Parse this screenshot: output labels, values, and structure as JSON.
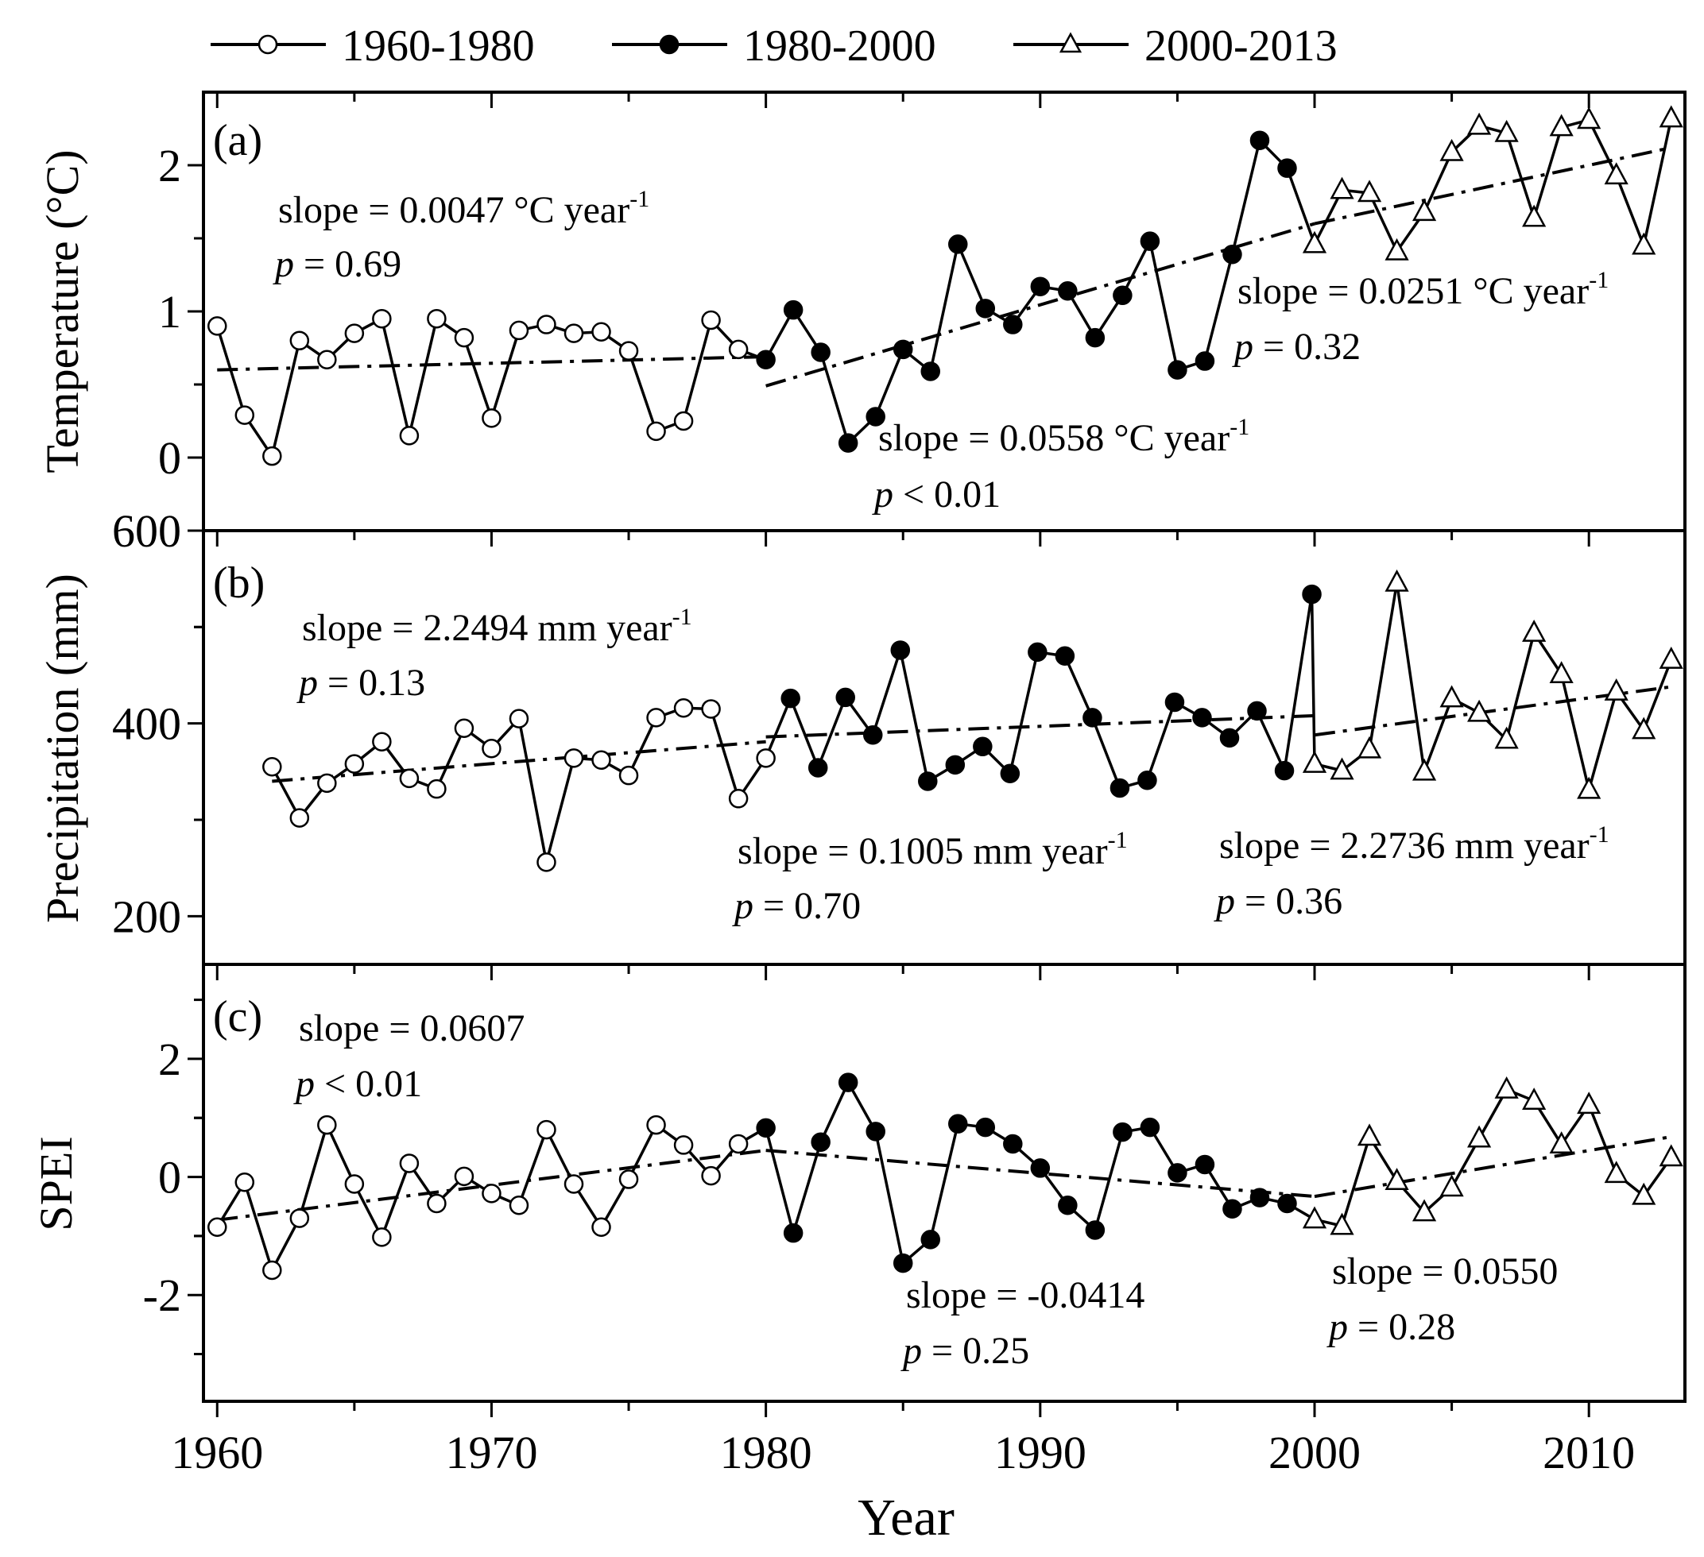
{
  "chart_data": {
    "type": "line",
    "x_label": "Year",
    "x_range": [
      1959.5,
      2013.5
    ],
    "x_ticks": [
      1960,
      1970,
      1980,
      1990,
      2000,
      2010
    ],
    "legend": [
      {
        "name": "1960-1980",
        "marker": "open-circle"
      },
      {
        "name": "1980-2000",
        "marker": "filled-circle"
      },
      {
        "name": "2000-2013",
        "marker": "open-triangle"
      }
    ],
    "panels": [
      {
        "id": "a",
        "label": "(a)",
        "ylabel": "Temperature (°C)",
        "ylim": [
          -0.5,
          2.5
        ],
        "yticks": [
          0,
          1,
          2
        ],
        "series": [
          {
            "name": "1960-1980",
            "x": [
              1960,
              1961,
              1962,
              1963,
              1964,
              1965,
              1966,
              1967,
              1968,
              1969,
              1970,
              1971,
              1972,
              1973,
              1974,
              1975,
              1976,
              1977,
              1978,
              1979
            ],
            "values": [
              0.9,
              0.29,
              0.01,
              0.8,
              0.67,
              0.85,
              0.95,
              0.15,
              0.95,
              0.82,
              0.27,
              0.87,
              0.91,
              0.85,
              0.86,
              0.73,
              0.18,
              0.25,
              0.94,
              0.74
            ]
          },
          {
            "name": "1980-2000",
            "x": [
              1980,
              1981,
              1982,
              1983,
              1984,
              1985,
              1986,
              1987,
              1988,
              1989,
              1990,
              1991,
              1992,
              1993,
              1994,
              1995,
              1996,
              1997,
              1998,
              1999
            ],
            "values": [
              0.67,
              1.01,
              0.72,
              0.1,
              0.28,
              0.74,
              0.59,
              1.46,
              1.02,
              0.91,
              1.17,
              1.14,
              0.82,
              1.11,
              1.48,
              0.6,
              0.66,
              1.39,
              2.17,
              1.98
            ]
          },
          {
            "name": "2000-2013",
            "x": [
              2000,
              2001,
              2002,
              2003,
              2004,
              2005,
              2006,
              2007,
              2008,
              2009,
              2010,
              2011,
              2012,
              2013
            ],
            "values": [
              1.46,
              1.83,
              1.81,
              1.41,
              1.68,
              2.09,
              2.27,
              2.22,
              1.64,
              2.26,
              2.31,
              1.93,
              1.45,
              2.32
            ]
          }
        ],
        "trends": [
          {
            "x": [
              1960,
              1980
            ],
            "y": [
              0.6,
              0.69
            ]
          },
          {
            "x": [
              1980,
              2000
            ],
            "y": [
              0.49,
              1.6
            ]
          },
          {
            "x": [
              2000,
              2013
            ],
            "y": [
              1.6,
              2.12
            ]
          }
        ],
        "annotations": [
          {
            "slope_prefix": "slope = 0.0047 °C year",
            "sup": "-1",
            "p_rel": " = 0.69"
          },
          {
            "slope_prefix": "slope = 0.0558 °C year",
            "sup": "-1",
            "p_rel": " < 0.01"
          },
          {
            "slope_prefix": "slope = 0.0251 °C year",
            "sup": "-1",
            "p_rel": " = 0.32"
          }
        ]
      },
      {
        "id": "b",
        "label": "(b)",
        "ylabel": "Precipitation (mm)",
        "ylim": [
          150,
          600
        ],
        "yticks": [
          200,
          400,
          600
        ],
        "series": [
          {
            "name": "1960-1980",
            "x": [
              1962,
              1963,
              1964,
              1965,
              1966,
              1967,
              1968,
              1969,
              1970,
              1971,
              1972,
              1973,
              1974,
              1975,
              1976,
              1977,
              1978,
              1979,
              1980
            ],
            "values": [
              355,
              302,
              338,
              358,
              381,
              343,
              332,
              395,
              374,
              405,
              256,
              364,
              362,
              346,
              406,
              416,
              415,
              322,
              364
            ]
          },
          {
            "name": "1980-2000",
            "x": [
              1980.9,
              1981.9,
              1982.9,
              1983.9,
              1984.9,
              1985.9,
              1986.9,
              1987.9,
              1988.9,
              1989.9,
              1990.9,
              1991.9,
              1992.9,
              1993.9,
              1994.9,
              1995.9,
              1996.9,
              1997.9,
              1998.9,
              1999.9
            ],
            "values": [
              426,
              354,
              427,
              388,
              476,
              340,
              357,
              376,
              348,
              474,
              470,
              406,
              333,
              341,
              422,
              406,
              385,
              413,
              351,
              534
            ]
          },
          {
            "name": "2000-2013",
            "x": [
              2000,
              2001,
              2002,
              2003,
              2004,
              2005,
              2006,
              2007,
              2008,
              2009,
              2010,
              2011,
              2012,
              2013
            ],
            "values": [
              358,
              351,
              373,
              546,
              350,
              426,
              411,
              383,
              494,
              451,
              331,
              433,
              393,
              466
            ]
          }
        ],
        "trends": [
          {
            "x": [
              1962,
              1980
            ],
            "y": [
              340,
              381
            ]
          },
          {
            "x": [
              1980,
              2000
            ],
            "y": [
              386,
              408
            ]
          },
          {
            "x": [
              2000,
              2013
            ],
            "y": [
              388,
              438
            ]
          }
        ],
        "annotations": [
          {
            "slope_prefix": "slope = 2.2494 mm year",
            "sup": "-1",
            "p_rel": " = 0.13"
          },
          {
            "slope_prefix": "slope = 0.1005 mm year",
            "sup": "-1",
            "p_rel": " = 0.70"
          },
          {
            "slope_prefix": "slope = 2.2736 mm year",
            "sup": "-1",
            "p_rel": " = 0.36"
          }
        ]
      },
      {
        "id": "c",
        "label": "(c)",
        "ylabel": "SPEI",
        "ylim": [
          -3.8,
          3.6
        ],
        "yticks": [
          -2,
          0,
          2
        ],
        "series": [
          {
            "name": "1960-1980",
            "x": [
              1960,
              1961,
              1962,
              1963,
              1964,
              1965,
              1966,
              1967,
              1968,
              1969,
              1970,
              1971,
              1972,
              1973,
              1974,
              1975,
              1976,
              1977,
              1978,
              1979
            ],
            "values": [
              -0.85,
              -0.09,
              -1.58,
              -0.7,
              0.88,
              -0.12,
              -1.02,
              0.23,
              -0.45,
              0.01,
              -0.28,
              -0.48,
              0.8,
              -0.12,
              -0.85,
              -0.04,
              0.88,
              0.54,
              0.02,
              0.56
            ]
          },
          {
            "name": "1980-2000",
            "x": [
              1980,
              1981,
              1982,
              1983,
              1984,
              1985,
              1986,
              1987,
              1988,
              1989,
              1990,
              1991,
              1992,
              1993,
              1994,
              1995,
              1996,
              1997,
              1998,
              1999
            ],
            "values": [
              0.83,
              -0.95,
              0.59,
              1.6,
              0.77,
              -1.46,
              -1.06,
              0.9,
              0.84,
              0.56,
              0.15,
              -0.48,
              -0.9,
              0.76,
              0.84,
              0.07,
              0.21,
              -0.54,
              -0.35,
              -0.45
            ]
          },
          {
            "name": "2000-2013",
            "x": [
              2000,
              2001,
              2002,
              2003,
              2004,
              2005,
              2006,
              2007,
              2008,
              2009,
              2010,
              2011,
              2012,
              2013
            ],
            "values": [
              -0.72,
              -0.83,
              0.68,
              -0.07,
              -0.6,
              -0.18,
              0.65,
              1.48,
              1.29,
              0.55,
              1.22,
              0.05,
              -0.32,
              0.33
            ]
          }
        ],
        "trends": [
          {
            "x": [
              1960,
              1980
            ],
            "y": [
              -0.73,
              0.45
            ]
          },
          {
            "x": [
              1980,
              2000
            ],
            "y": [
              0.45,
              -0.33
            ]
          },
          {
            "x": [
              2000,
              2013
            ],
            "y": [
              -0.33,
              0.68
            ]
          }
        ],
        "annotations": [
          {
            "slope_prefix": "slope = 0.0607",
            "sup": "",
            "p_rel": " < 0.01"
          },
          {
            "slope_prefix": "slope = -0.0414",
            "sup": "",
            "p_rel": " = 0.25"
          },
          {
            "slope_prefix": "slope = 0.0550",
            "sup": "",
            "p_rel": " = 0.28"
          }
        ]
      }
    ]
  }
}
